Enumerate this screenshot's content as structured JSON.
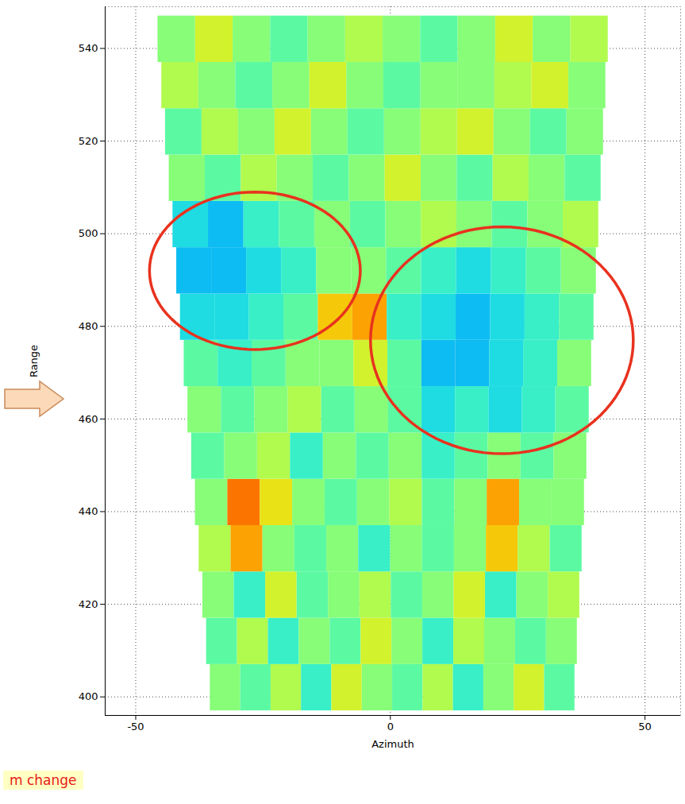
{
  "chart_data": {
    "type": "heatmap",
    "xlabel": "Azimuth",
    "ylabel": "Range",
    "xlim": [
      -56,
      57
    ],
    "ylim": [
      396,
      549
    ],
    "xticks": [
      -50,
      0,
      50
    ],
    "yticks": [
      400,
      420,
      440,
      460,
      480,
      500,
      520,
      540
    ],
    "grid": true,
    "sector": {
      "range": [
        397,
        547
      ],
      "azimuth_at_near_range": [
        -35,
        36
      ],
      "azimuth_at_far_range": [
        -46,
        43
      ]
    },
    "cell_range": [
      0,
      1
    ],
    "colors": [
      "#00008f",
      "#0000ff",
      "#00c8ff",
      "#3cffc3",
      "#d2ff2d",
      "#ffd200",
      "#ff3000",
      "#900000"
    ],
    "cells": [
      [
        0.5,
        0.45,
        0.55,
        0.4,
        0.6,
        0.5,
        0.45,
        0.55,
        0.4,
        0.5,
        0.6,
        0.45
      ],
      [
        0.45,
        0.55,
        0.4,
        0.5,
        0.45,
        0.6,
        0.5,
        0.4,
        0.55,
        0.5,
        0.45,
        0.5
      ],
      [
        0.5,
        0.4,
        0.6,
        0.45,
        0.5,
        0.55,
        0.45,
        0.5,
        0.6,
        0.4,
        0.5,
        0.55
      ],
      [
        0.55,
        0.75,
        0.5,
        0.45,
        0.5,
        0.4,
        0.5,
        0.45,
        0.5,
        0.7,
        0.55,
        0.45
      ],
      [
        0.5,
        0.8,
        0.65,
        0.5,
        0.45,
        0.5,
        0.55,
        0.45,
        0.5,
        0.75,
        0.5,
        0.5
      ],
      [
        0.45,
        0.5,
        0.55,
        0.4,
        0.5,
        0.45,
        0.5,
        0.4,
        0.45,
        0.5,
        0.45,
        0.5
      ],
      [
        0.5,
        0.45,
        0.5,
        0.55,
        0.45,
        0.5,
        0.45,
        0.35,
        0.4,
        0.35,
        0.4,
        0.45
      ],
      [
        0.45,
        0.4,
        0.45,
        0.5,
        0.5,
        0.6,
        0.45,
        0.3,
        0.3,
        0.35,
        0.4,
        0.5
      ],
      [
        0.35,
        0.35,
        0.4,
        0.45,
        0.7,
        0.75,
        0.4,
        0.35,
        0.3,
        0.35,
        0.4,
        0.45
      ],
      [
        0.3,
        0.3,
        0.35,
        0.4,
        0.5,
        0.5,
        0.45,
        0.4,
        0.35,
        0.4,
        0.45,
        0.5
      ],
      [
        0.35,
        0.3,
        0.4,
        0.45,
        0.5,
        0.45,
        0.5,
        0.55,
        0.5,
        0.45,
        0.5,
        0.55
      ],
      [
        0.5,
        0.45,
        0.55,
        0.5,
        0.45,
        0.5,
        0.6,
        0.5,
        0.45,
        0.55,
        0.5,
        0.45
      ],
      [
        0.45,
        0.55,
        0.5,
        0.6,
        0.5,
        0.45,
        0.5,
        0.55,
        0.6,
        0.5,
        0.45,
        0.5
      ],
      [
        0.55,
        0.5,
        0.45,
        0.5,
        0.6,
        0.5,
        0.45,
        0.5,
        0.5,
        0.55,
        0.6,
        0.5
      ],
      [
        0.5,
        0.6,
        0.5,
        0.45,
        0.5,
        0.55,
        0.5,
        0.45,
        0.5,
        0.6,
        0.5,
        0.55
      ]
    ],
    "highlights": [
      {
        "center": [
          -26.6,
          492
        ],
        "radii": [
          20.7,
          17
        ]
      },
      {
        "center": [
          21.9,
          477
        ],
        "radii": [
          25.8,
          24.5
        ]
      }
    ],
    "annotations": [
      "m change"
    ]
  }
}
